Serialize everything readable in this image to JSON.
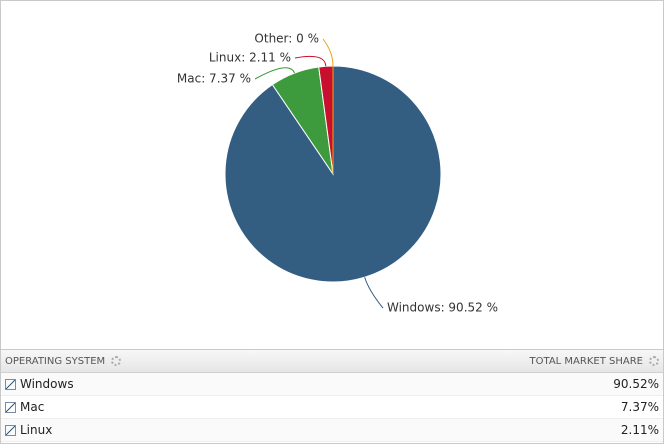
{
  "chart_data": {
    "type": "pie",
    "categories": [
      "Windows",
      "Mac",
      "Linux",
      "Other"
    ],
    "values": [
      90.52,
      7.37,
      2.11,
      0
    ],
    "value_labels": [
      "Windows: 90.52 %",
      "Mac: 7.37 %",
      "Linux: 2.11 %",
      "Other: 0 %"
    ],
    "colors": [
      "#345d82",
      "#3d9a3d",
      "#c8102e",
      "#e8a317"
    ]
  },
  "table": {
    "headers": [
      "OPERATING SYSTEM",
      "TOTAL MARKET SHARE"
    ],
    "rows": [
      [
        "Windows",
        "90.52%"
      ],
      [
        "Mac",
        "7.37%"
      ],
      [
        "Linux",
        "2.11%"
      ]
    ]
  }
}
